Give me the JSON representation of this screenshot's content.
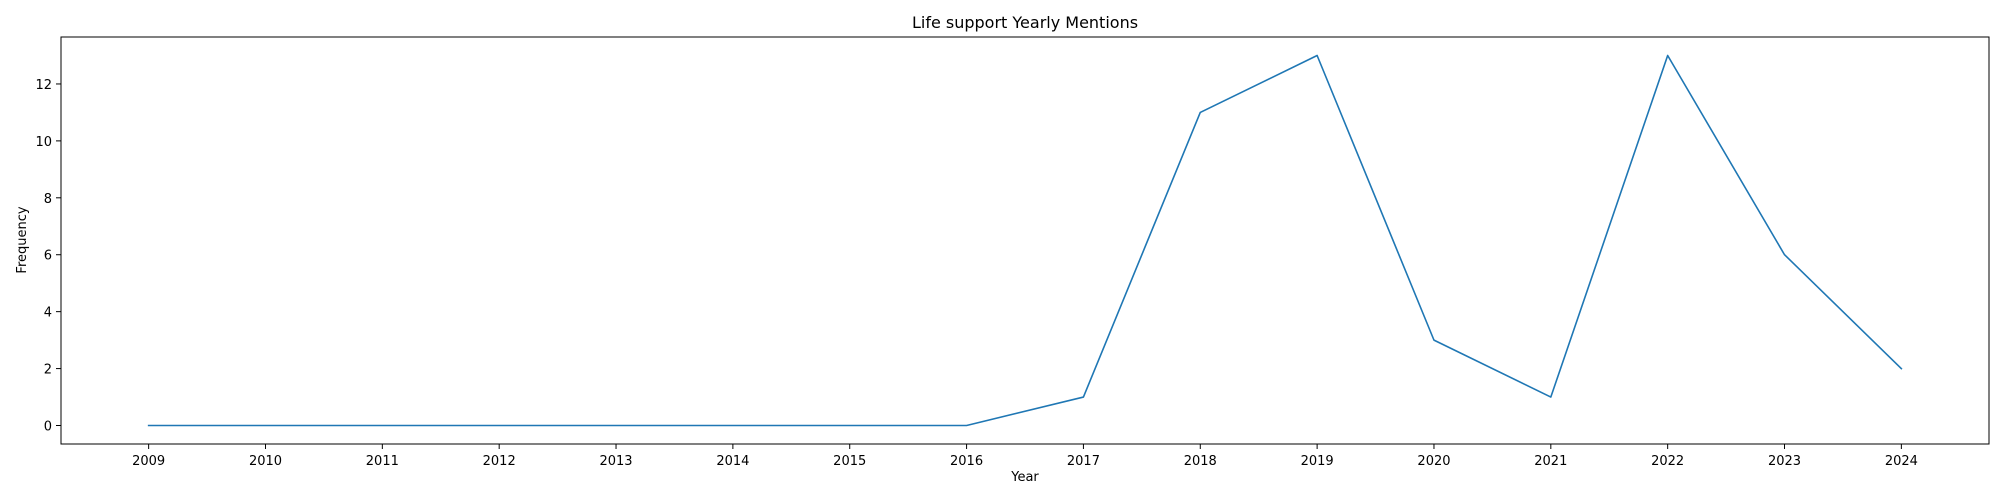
{
  "chart_data": {
    "type": "line",
    "title": "Life support Yearly Mentions",
    "xlabel": "Year",
    "ylabel": "Frequency",
    "x": [
      2009,
      2010,
      2011,
      2012,
      2013,
      2014,
      2015,
      2016,
      2017,
      2018,
      2019,
      2020,
      2021,
      2022,
      2023,
      2024
    ],
    "series": [
      {
        "values": [
          0,
          0,
          0,
          0,
          0,
          0,
          0,
          0,
          1,
          11,
          13,
          3,
          1,
          13,
          6,
          2
        ],
        "color": "#1f77b4"
      }
    ],
    "yticks": [
      0,
      2,
      4,
      6,
      8,
      10,
      12
    ],
    "ylim": [
      -0.65,
      13.65
    ],
    "xlim": [
      2008.25,
      2024.75
    ],
    "grid": false,
    "legend": false
  }
}
